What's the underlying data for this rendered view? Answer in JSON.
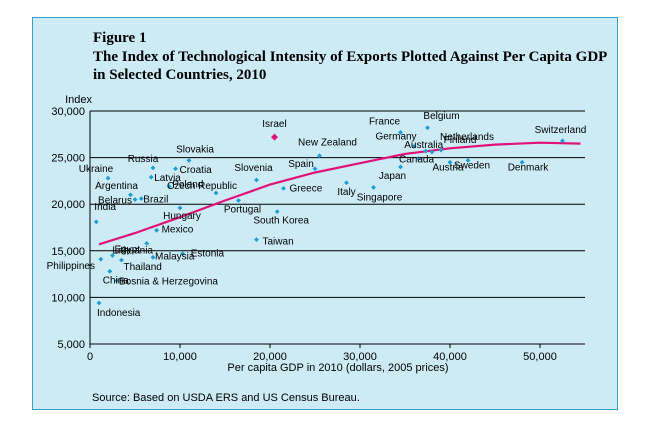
{
  "figure": {
    "label": "Figure 1",
    "title": "The Index of Technological Intensity of Exports Plotted Against Per Capita GDP in Selected Countries, 2010",
    "source": "Source: Based on USDA ERS and US Census Bureau."
  },
  "colors": {
    "panel_background": "#ccebf5",
    "panel_border": "#3aa0c8",
    "point": "#1a9ed4",
    "highlight_point": "#e0127a",
    "trend_line": "#e0127a",
    "grid": "#000000"
  },
  "chart_data": {
    "type": "scatter",
    "title": "The Index of Technological Intensity of Exports Plotted Against Per Capita GDP in Selected Countries, 2010",
    "xlabel": "Per capita GDP in 2010 (dollars, 2005 prices)",
    "ylabel": "Index",
    "xlim": [
      0,
      55000
    ],
    "ylim": [
      5000,
      30000
    ],
    "xticks": [
      0,
      10000,
      20000,
      30000,
      40000,
      50000
    ],
    "xtick_labels": [
      "0",
      "10,000",
      "20,000",
      "30,000",
      "40,000",
      "50,000"
    ],
    "yticks": [
      5000,
      10000,
      15000,
      20000,
      25000,
      30000
    ],
    "ytick_labels": [
      "5,000",
      "10,000",
      "15,000",
      "20,000",
      "25,000",
      "30,000"
    ],
    "grid": "horizontal",
    "points": [
      {
        "label": "Israel",
        "x": 20500,
        "y": 27200,
        "highlight": true
      },
      {
        "label": "Switzerland",
        "x": 52500,
        "y": 26800
      },
      {
        "label": "Belgium",
        "x": 37500,
        "y": 28200
      },
      {
        "label": "France",
        "x": 34500,
        "y": 27700
      },
      {
        "label": "Germany",
        "x": 36000,
        "y": 26200
      },
      {
        "label": "Netherlands",
        "x": 39000,
        "y": 25800
      },
      {
        "label": "Finland",
        "x": 38000,
        "y": 25600
      },
      {
        "label": "Australia",
        "x": 37300,
        "y": 25700
      },
      {
        "label": "Canada",
        "x": 36500,
        "y": 24900
      },
      {
        "label": "Japan",
        "x": 34500,
        "y": 24000
      },
      {
        "label": "Austria",
        "x": 40000,
        "y": 24500
      },
      {
        "label": "Sweden",
        "x": 42000,
        "y": 24700
      },
      {
        "label": "Denmark",
        "x": 48000,
        "y": 24500
      },
      {
        "label": "Singapore",
        "x": 31500,
        "y": 21800
      },
      {
        "label": "Italy",
        "x": 28500,
        "y": 22300
      },
      {
        "label": "Spain",
        "x": 25000,
        "y": 23800
      },
      {
        "label": "New Zealand",
        "x": 25500,
        "y": 25200
      },
      {
        "label": "Greece",
        "x": 21500,
        "y": 21700
      },
      {
        "label": "South Korea",
        "x": 20800,
        "y": 19200
      },
      {
        "label": "Taiwan",
        "x": 18500,
        "y": 16200
      },
      {
        "label": "Slovenia",
        "x": 18500,
        "y": 22600
      },
      {
        "label": "Slovakia",
        "x": 11000,
        "y": 24700
      },
      {
        "label": "Czech Republic",
        "x": 14000,
        "y": 21200
      },
      {
        "label": "Portugal",
        "x": 16500,
        "y": 20400
      },
      {
        "label": "Croatia",
        "x": 9500,
        "y": 23800
      },
      {
        "label": "Russia",
        "x": 7000,
        "y": 23900
      },
      {
        "label": "Latvia",
        "x": 6800,
        "y": 22900
      },
      {
        "label": "Poland",
        "x": 8800,
        "y": 21900
      },
      {
        "label": "Hungary",
        "x": 10000,
        "y": 19600
      },
      {
        "label": "Ukraine",
        "x": 2000,
        "y": 22800
      },
      {
        "label": "Argentina",
        "x": 4500,
        "y": 21000
      },
      {
        "label": "Belarus",
        "x": 5000,
        "y": 20500
      },
      {
        "label": "Brazil",
        "x": 5700,
        "y": 20600
      },
      {
        "label": "India",
        "x": 700,
        "y": 18100
      },
      {
        "label": "Mexico",
        "x": 7400,
        "y": 17200
      },
      {
        "label": "Lithuania",
        "x": 6300,
        "y": 15800
      },
      {
        "label": "Estonia",
        "x": 10300,
        "y": 14700
      },
      {
        "label": "Malaysia",
        "x": 7000,
        "y": 14300
      },
      {
        "label": "Egypt",
        "x": 2500,
        "y": 14500
      },
      {
        "label": "Thailand",
        "x": 3500,
        "y": 14000
      },
      {
        "label": "Philippines",
        "x": 1200,
        "y": 14100
      },
      {
        "label": "Bosnia & Herzegovina",
        "x": 3000,
        "y": 11800
      },
      {
        "label": "China",
        "x": 2200,
        "y": 12800
      },
      {
        "label": "Indonesia",
        "x": 1000,
        "y": 9400
      }
    ],
    "trend_line": [
      {
        "x": 1000,
        "y": 15700
      },
      {
        "x": 5000,
        "y": 16900
      },
      {
        "x": 10000,
        "y": 18600
      },
      {
        "x": 15000,
        "y": 20400
      },
      {
        "x": 20000,
        "y": 22100
      },
      {
        "x": 25000,
        "y": 23400
      },
      {
        "x": 30000,
        "y": 24400
      },
      {
        "x": 35000,
        "y": 25400
      },
      {
        "x": 40000,
        "y": 26000
      },
      {
        "x": 45000,
        "y": 26400
      },
      {
        "x": 50000,
        "y": 26600
      },
      {
        "x": 54500,
        "y": 26500
      }
    ]
  }
}
